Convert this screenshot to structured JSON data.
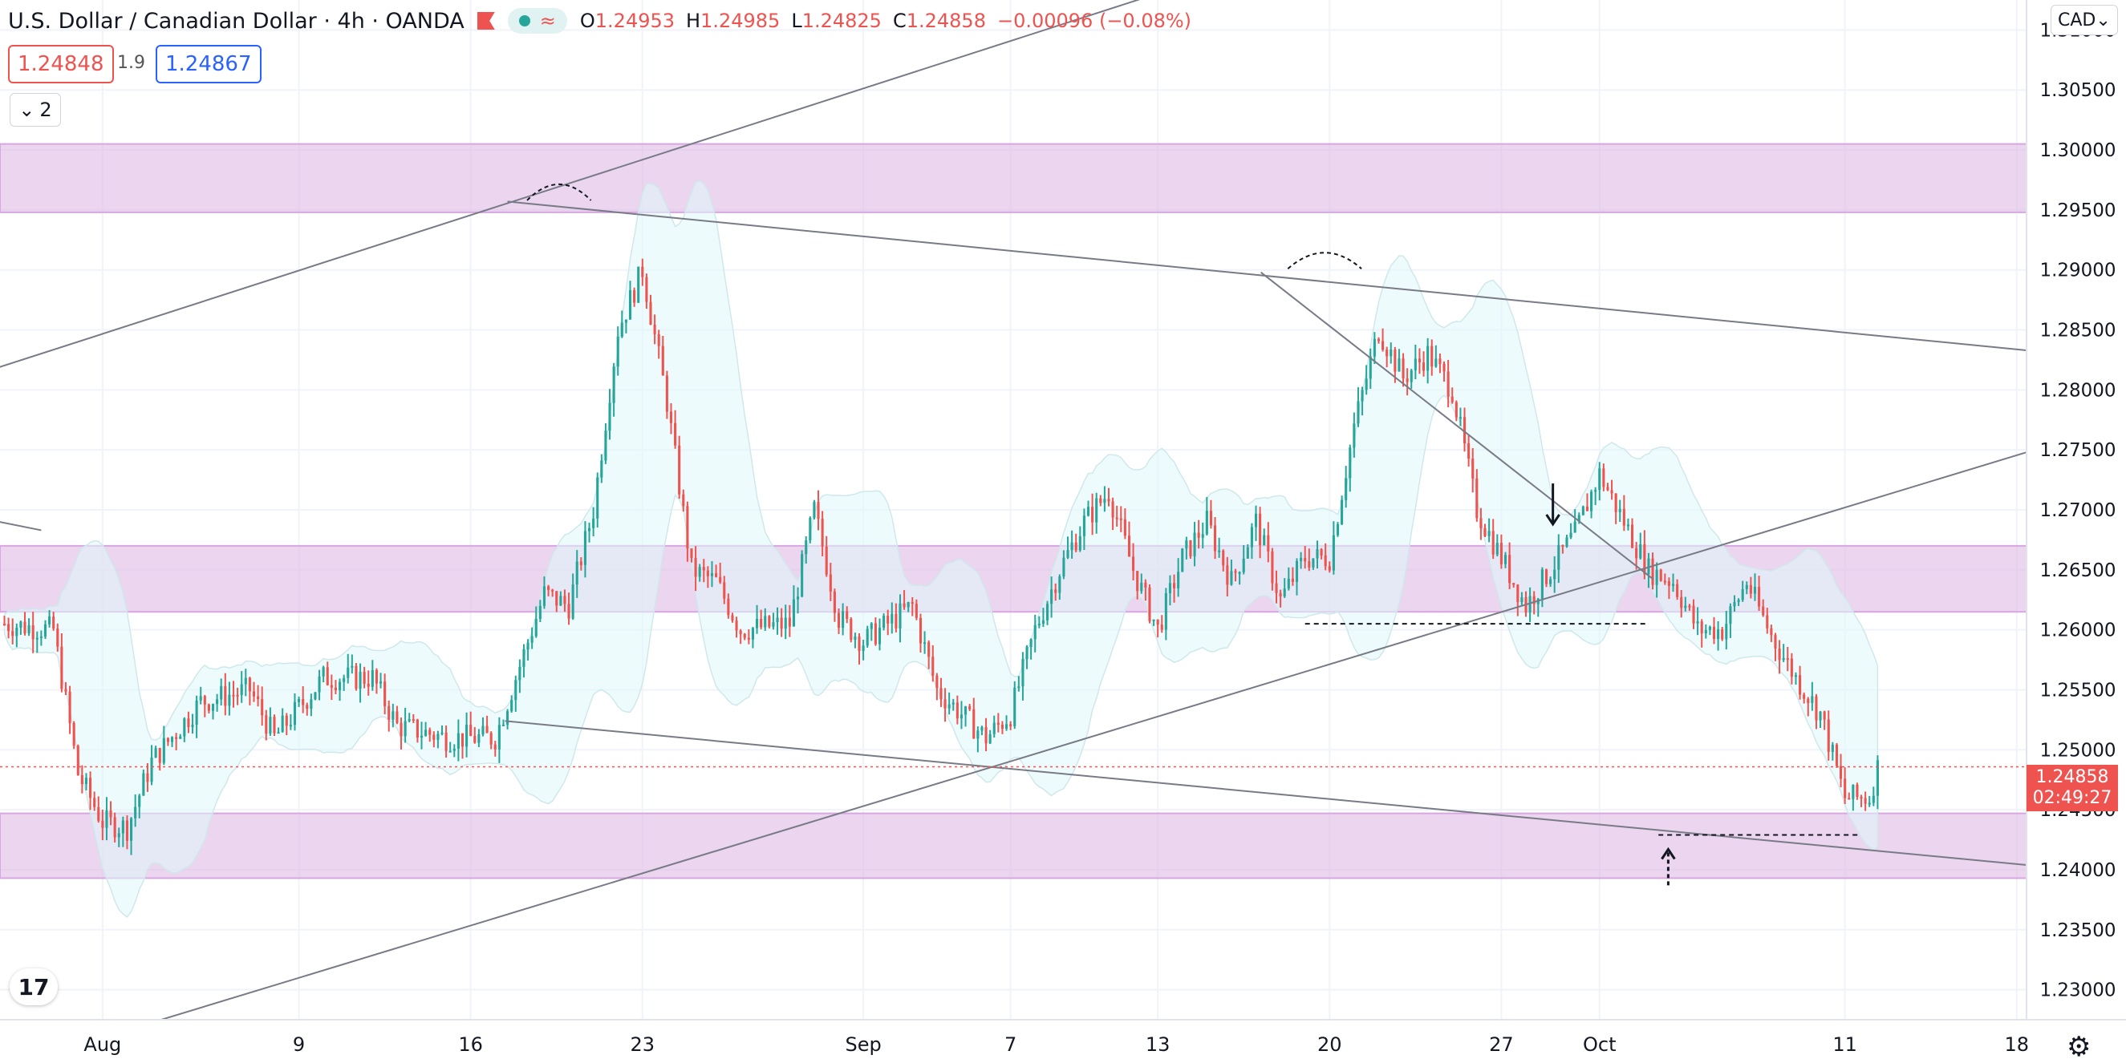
{
  "header": {
    "symbol_title": "U.S. Dollar / Canadian Dollar · 4h · OANDA",
    "open_label": "O",
    "open": "1.24953",
    "high_label": "H",
    "high": "1.24985",
    "low_label": "L",
    "low": "1.24825",
    "close_label": "C",
    "close": "1.24858",
    "change": "−0.00096 (−0.08%)",
    "bid_price": "1.24848",
    "spread": "1.9",
    "ask_price": "1.24867",
    "indicators_count": "2",
    "currency_button": "CAD"
  },
  "colors": {
    "up": "#26a69a",
    "down": "#ef5350",
    "zone": "#e1bee7",
    "band": "#e0f7fa",
    "line": "#787b86"
  },
  "last_price": {
    "price": 1.24858,
    "price_label": "1.24858",
    "countdown": "02:49:27"
  },
  "chart_data": {
    "type": "candlestick",
    "title": "U.S. Dollar / Canadian Dollar · 4h · OANDA",
    "ylim": [
      1.2275,
      1.3125
    ],
    "y_ticks": [
      1.23,
      1.235,
      1.24,
      1.245,
      1.25,
      1.255,
      1.26,
      1.265,
      1.27,
      1.275,
      1.28,
      1.285,
      1.29,
      1.295,
      1.3,
      1.305,
      1.31
    ],
    "y_tick_labels": [
      "1.23000",
      "1.23500",
      "1.24000",
      "1.24500",
      "1.25000",
      "1.25500",
      "1.26000",
      "1.26500",
      "1.27000",
      "1.27500",
      "1.28000",
      "1.28500",
      "1.29000",
      "1.29500",
      "1.30000",
      "1.30500",
      "1.31000"
    ],
    "x_range_days": [
      -3.18,
      79.4
    ],
    "x_ticks": [
      {
        "label": "Aug",
        "day": 1
      },
      {
        "label": "9",
        "day": 9
      },
      {
        "label": "16",
        "day": 16
      },
      {
        "label": "23",
        "day": 23
      },
      {
        "label": "Sep",
        "day": 32
      },
      {
        "label": "7",
        "day": 38
      },
      {
        "label": "13",
        "day": 44
      },
      {
        "label": "20",
        "day": 51
      },
      {
        "label": "27",
        "day": 58
      },
      {
        "label": "Oct",
        "day": 62
      },
      {
        "label": "11",
        "day": 72
      },
      {
        "label": "18",
        "day": 79
      }
    ],
    "path_points": [
      [
        -3,
        1.2605
      ],
      [
        -1,
        1.26
      ],
      [
        0,
        1.248
      ],
      [
        1,
        1.244
      ],
      [
        2,
        1.2435
      ],
      [
        3,
        1.249
      ],
      [
        5,
        1.254
      ],
      [
        7,
        1.255
      ],
      [
        8,
        1.251
      ],
      [
        10,
        1.256
      ],
      [
        12,
        1.256
      ],
      [
        13,
        1.252
      ],
      [
        15,
        1.251
      ],
      [
        17,
        1.251
      ],
      [
        18,
        1.257
      ],
      [
        19,
        1.263
      ],
      [
        20,
        1.262
      ],
      [
        21,
        1.27
      ],
      [
        22,
        1.285
      ],
      [
        23,
        1.29
      ],
      [
        24,
        1.279
      ],
      [
        25,
        1.265
      ],
      [
        26,
        1.264
      ],
      [
        27,
        1.26
      ],
      [
        29,
        1.2605
      ],
      [
        30,
        1.27
      ],
      [
        31,
        1.261
      ],
      [
        32,
        1.259
      ],
      [
        33,
        1.2605
      ],
      [
        34,
        1.262
      ],
      [
        35,
        1.255
      ],
      [
        37,
        1.251
      ],
      [
        38,
        1.253
      ],
      [
        39,
        1.26
      ],
      [
        40,
        1.265
      ],
      [
        41,
        1.269
      ],
      [
        42,
        1.2715
      ],
      [
        43,
        1.265
      ],
      [
        44,
        1.26
      ],
      [
        45,
        1.266
      ],
      [
        46,
        1.269
      ],
      [
        47,
        1.264
      ],
      [
        48,
        1.269
      ],
      [
        49,
        1.2625
      ],
      [
        50,
        1.266
      ],
      [
        51,
        1.266
      ],
      [
        52,
        1.277
      ],
      [
        53,
        1.285
      ],
      [
        54,
        1.281
      ],
      [
        55,
        1.283
      ],
      [
        56,
        1.28
      ],
      [
        57,
        1.27
      ],
      [
        58,
        1.266
      ],
      [
        59,
        1.262
      ],
      [
        60,
        1.265
      ],
      [
        61,
        1.268
      ],
      [
        62,
        1.273
      ],
      [
        63,
        1.269
      ],
      [
        64,
        1.265
      ],
      [
        65,
        1.264
      ],
      [
        66,
        1.26
      ],
      [
        67,
        1.26
      ],
      [
        68,
        1.264
      ],
      [
        69,
        1.2595
      ],
      [
        70,
        1.256
      ],
      [
        71,
        1.253
      ],
      [
        72,
        1.246
      ],
      [
        73,
        1.246
      ],
      [
        73.4,
        1.249
      ]
    ],
    "annotations": {
      "zones": [
        [
          1.2948,
          1.3005
        ],
        [
          1.2615,
          1.267
        ],
        [
          1.2393,
          1.2447
        ]
      ],
      "trendlines": [
        [
          [
            -3.2,
            1.2819
          ],
          [
            45.6,
            1.3141
          ]
        ],
        [
          [
            -3.2,
            1.2234
          ],
          [
            79.4,
            1.2748
          ]
        ],
        [
          [
            17.5,
            1.2957
          ],
          [
            79.4,
            1.2833
          ]
        ],
        [
          [
            17.4,
            1.2524
          ],
          [
            79.4,
            1.2404
          ]
        ],
        [
          [
            48.2,
            1.2898
          ],
          [
            64.2,
            1.2642
          ]
        ],
        [
          [
            -3.2,
            1.269
          ],
          [
            -1.5,
            1.2683
          ]
        ]
      ],
      "support_lines": [
        [
          [
            50,
            1.2605
          ],
          [
            64,
            1.2605
          ]
        ],
        [
          [
            64.4,
            1.2429
          ],
          [
            72.6,
            1.2429
          ]
        ]
      ],
      "arrows": [
        {
          "day": 60.1,
          "from": 1.2722,
          "to": 1.2688
        },
        {
          "day": 64.8,
          "from": 1.2387,
          "to": 1.2417
        }
      ]
    }
  }
}
